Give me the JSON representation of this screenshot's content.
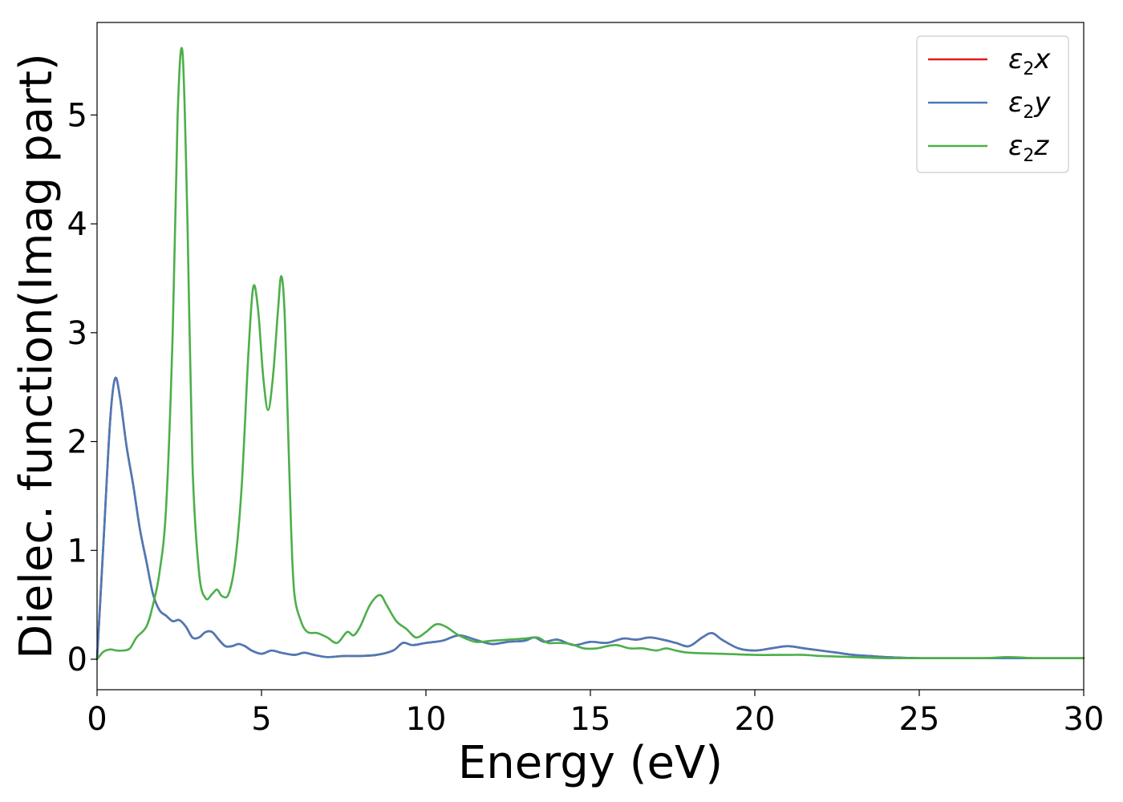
{
  "chart_data": {
    "type": "line",
    "title": "",
    "xlabel": "Energy (eV)",
    "ylabel": "Dielec. function(Imag part)",
    "xlim": [
      0,
      30
    ],
    "ylim": [
      -0.28,
      5.85
    ],
    "xticks": [
      0,
      5,
      10,
      15,
      20,
      25,
      30
    ],
    "xtick_labels": [
      "0",
      "5",
      "10",
      "15",
      "20",
      "25",
      "30"
    ],
    "yticks": [
      0,
      1,
      2,
      3,
      4,
      5
    ],
    "ytick_labels": [
      "0",
      "1",
      "2",
      "3",
      "4",
      "5"
    ],
    "grid": false,
    "legend_position": "top-right",
    "series": [
      {
        "name": "ε2x",
        "base": "ε",
        "sub": "2",
        "tail": "x",
        "color": "#e41a1c",
        "x": [
          0,
          0.2,
          0.4,
          0.55,
          0.7,
          0.9,
          1.1,
          1.3,
          1.5,
          1.7,
          1.9,
          2.1,
          2.3,
          2.5,
          2.7,
          2.9,
          3.1,
          3.3,
          3.5,
          3.7,
          3.9,
          4.1,
          4.3,
          4.5,
          4.7,
          5.0,
          5.3,
          5.6,
          6.0,
          6.3,
          6.6,
          7.0,
          7.5,
          8.0,
          8.5,
          9.0,
          9.3,
          9.6,
          10.0,
          10.5,
          11.0,
          11.5,
          12.0,
          12.5,
          13.0,
          13.3,
          13.6,
          14.0,
          14.5,
          15.0,
          15.5,
          16.0,
          16.4,
          16.8,
          17.2,
          17.6,
          18.0,
          18.4,
          18.7,
          19.0,
          19.5,
          20.0,
          20.5,
          21.0,
          21.5,
          22.0,
          22.5,
          23.0,
          23.5,
          24.0,
          25.0,
          26.0,
          27.0,
          28.0,
          29.0,
          30.0
        ],
        "y": [
          0,
          1.1,
          2.2,
          2.58,
          2.4,
          1.95,
          1.6,
          1.2,
          0.9,
          0.6,
          0.45,
          0.4,
          0.35,
          0.36,
          0.3,
          0.2,
          0.2,
          0.25,
          0.25,
          0.18,
          0.12,
          0.12,
          0.14,
          0.12,
          0.08,
          0.05,
          0.08,
          0.06,
          0.04,
          0.06,
          0.04,
          0.02,
          0.03,
          0.03,
          0.04,
          0.08,
          0.15,
          0.13,
          0.15,
          0.17,
          0.22,
          0.18,
          0.14,
          0.16,
          0.17,
          0.2,
          0.16,
          0.18,
          0.13,
          0.16,
          0.15,
          0.19,
          0.18,
          0.2,
          0.18,
          0.15,
          0.12,
          0.2,
          0.24,
          0.18,
          0.1,
          0.08,
          0.1,
          0.12,
          0.1,
          0.08,
          0.06,
          0.04,
          0.03,
          0.02,
          0.01,
          0.01,
          0.01,
          0.01,
          0.01,
          0.01
        ]
      },
      {
        "name": "ε2y",
        "base": "ε",
        "sub": "2",
        "tail": "y",
        "color": "#4a7ab8",
        "x": [
          0,
          0.2,
          0.4,
          0.55,
          0.7,
          0.9,
          1.1,
          1.3,
          1.5,
          1.7,
          1.9,
          2.1,
          2.3,
          2.5,
          2.7,
          2.9,
          3.1,
          3.3,
          3.5,
          3.7,
          3.9,
          4.1,
          4.3,
          4.5,
          4.7,
          5.0,
          5.3,
          5.6,
          6.0,
          6.3,
          6.6,
          7.0,
          7.5,
          8.0,
          8.5,
          9.0,
          9.3,
          9.6,
          10.0,
          10.5,
          11.0,
          11.5,
          12.0,
          12.5,
          13.0,
          13.3,
          13.6,
          14.0,
          14.5,
          15.0,
          15.5,
          16.0,
          16.4,
          16.8,
          17.2,
          17.6,
          18.0,
          18.4,
          18.7,
          19.0,
          19.5,
          20.0,
          20.5,
          21.0,
          21.5,
          22.0,
          22.5,
          23.0,
          23.5,
          24.0,
          25.0,
          26.0,
          27.0,
          28.0,
          29.0,
          30.0
        ],
        "y": [
          0,
          1.1,
          2.2,
          2.58,
          2.4,
          1.95,
          1.6,
          1.2,
          0.9,
          0.6,
          0.45,
          0.4,
          0.35,
          0.36,
          0.3,
          0.2,
          0.2,
          0.25,
          0.25,
          0.18,
          0.12,
          0.12,
          0.14,
          0.12,
          0.08,
          0.05,
          0.08,
          0.06,
          0.04,
          0.06,
          0.04,
          0.02,
          0.03,
          0.03,
          0.04,
          0.08,
          0.15,
          0.13,
          0.15,
          0.17,
          0.22,
          0.18,
          0.14,
          0.16,
          0.17,
          0.2,
          0.16,
          0.18,
          0.13,
          0.16,
          0.15,
          0.19,
          0.18,
          0.2,
          0.18,
          0.15,
          0.12,
          0.2,
          0.24,
          0.18,
          0.1,
          0.08,
          0.1,
          0.12,
          0.1,
          0.08,
          0.06,
          0.04,
          0.03,
          0.02,
          0.01,
          0.01,
          0.01,
          0.01,
          0.01,
          0.01
        ]
      },
      {
        "name": "ε2z",
        "base": "ε",
        "sub": "2",
        "tail": "z",
        "color": "#4daf4a",
        "x": [
          0,
          0.2,
          0.4,
          0.6,
          0.8,
          1.0,
          1.2,
          1.5,
          1.7,
          1.9,
          2.1,
          2.3,
          2.45,
          2.6,
          2.75,
          2.9,
          3.1,
          3.3,
          3.5,
          3.65,
          3.8,
          4.0,
          4.2,
          4.4,
          4.6,
          4.75,
          4.9,
          5.05,
          5.2,
          5.35,
          5.5,
          5.6,
          5.7,
          5.8,
          5.9,
          6.0,
          6.2,
          6.4,
          6.7,
          7.0,
          7.3,
          7.6,
          7.8,
          8.0,
          8.3,
          8.6,
          8.8,
          9.1,
          9.4,
          9.7,
          10.0,
          10.3,
          10.6,
          11.0,
          11.5,
          12.0,
          12.5,
          13.0,
          13.4,
          13.7,
          14.0,
          14.4,
          14.8,
          15.2,
          15.5,
          15.8,
          16.2,
          16.6,
          17.0,
          17.3,
          17.6,
          18.0,
          19.0,
          20.0,
          21.0,
          21.5,
          22.0,
          23.0,
          24.0,
          25.0,
          26.0,
          27.0,
          27.7,
          28.5,
          29.0,
          30.0
        ],
        "y": [
          0,
          0.07,
          0.09,
          0.08,
          0.08,
          0.1,
          0.2,
          0.3,
          0.5,
          0.8,
          1.4,
          3.0,
          5.0,
          5.57,
          4.0,
          1.8,
          0.8,
          0.56,
          0.6,
          0.64,
          0.58,
          0.6,
          0.9,
          1.6,
          2.8,
          3.42,
          3.2,
          2.6,
          2.29,
          2.6,
          3.2,
          3.52,
          3.2,
          2.2,
          1.2,
          0.6,
          0.35,
          0.25,
          0.24,
          0.2,
          0.15,
          0.25,
          0.22,
          0.3,
          0.5,
          0.59,
          0.5,
          0.35,
          0.28,
          0.2,
          0.25,
          0.32,
          0.3,
          0.22,
          0.16,
          0.17,
          0.18,
          0.19,
          0.2,
          0.15,
          0.15,
          0.14,
          0.1,
          0.1,
          0.12,
          0.13,
          0.1,
          0.1,
          0.08,
          0.1,
          0.08,
          0.06,
          0.05,
          0.04,
          0.04,
          0.04,
          0.03,
          0.02,
          0.01,
          0.01,
          0.01,
          0.01,
          0.02,
          0.01,
          0.01,
          0.01
        ]
      }
    ]
  }
}
